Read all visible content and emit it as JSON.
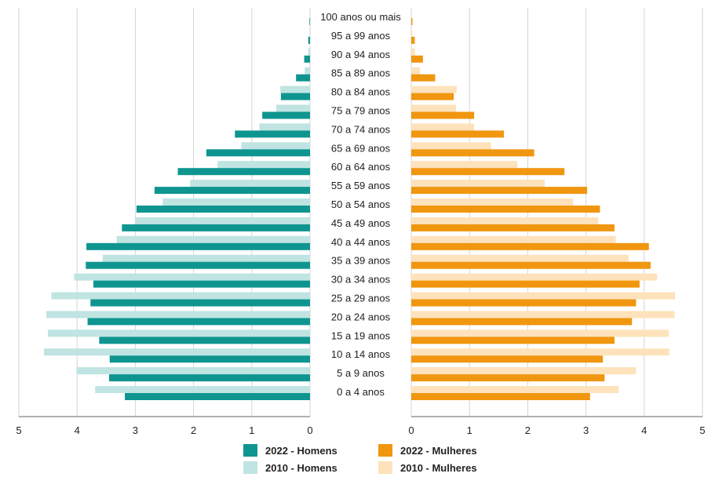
{
  "chart_data": {
    "type": "bar",
    "orientation": "horizontal",
    "categories": [
      "0 a 4 anos",
      "5 a 9 anos",
      "10 a 14 anos",
      "15 a 19 anos",
      "20 a 24 anos",
      "25 a 29 anos",
      "30 a 34 anos",
      "35 a 39 anos",
      "40 a 44 anos",
      "45 a 49 anos",
      "50 a 54 anos",
      "55 a 59 anos",
      "60 a 64 anos",
      "65 a 69 anos",
      "70 a 74 anos",
      "75 a 79 anos",
      "80 a 84 anos",
      "85 a 89 anos",
      "90 a 94 anos",
      "95 a 99 anos",
      "100 anos ou mais"
    ],
    "series": [
      {
        "name": "2022 - Homens",
        "side": "left",
        "color": "#0f9590",
        "values": [
          3.18,
          3.45,
          3.44,
          3.62,
          3.82,
          3.77,
          3.72,
          3.85,
          3.84,
          3.23,
          2.98,
          2.67,
          2.27,
          1.78,
          1.29,
          0.82,
          0.5,
          0.24,
          0.1,
          0.03,
          0.01
        ]
      },
      {
        "name": "2010 - Homens",
        "side": "left",
        "color": "#bfe4e2",
        "values": [
          3.69,
          4.01,
          4.57,
          4.5,
          4.53,
          4.44,
          4.05,
          3.56,
          3.32,
          3.0,
          2.53,
          2.06,
          1.59,
          1.18,
          0.87,
          0.58,
          0.51,
          0.09,
          0.03,
          0.01,
          0.0
        ]
      },
      {
        "name": "2022 - Mulheres",
        "side": "right",
        "color": "#f0960f",
        "values": [
          3.07,
          3.32,
          3.29,
          3.49,
          3.79,
          3.86,
          3.92,
          4.11,
          4.08,
          3.49,
          3.24,
          3.02,
          2.63,
          2.11,
          1.59,
          1.08,
          0.73,
          0.41,
          0.2,
          0.06,
          0.02
        ]
      },
      {
        "name": "2010 - Mulheres",
        "side": "right",
        "color": "#fde2bb",
        "values": [
          3.56,
          3.86,
          4.43,
          4.42,
          4.52,
          4.53,
          4.22,
          3.73,
          3.51,
          3.21,
          2.78,
          2.29,
          1.82,
          1.37,
          1.08,
          0.77,
          0.78,
          0.15,
          0.06,
          0.02,
          0.01
        ]
      }
    ],
    "x_left": {
      "ticks": [
        "5",
        "4",
        "3",
        "2",
        "1",
        "0"
      ],
      "range": [
        5,
        0
      ]
    },
    "x_right": {
      "ticks": [
        "0",
        "1",
        "2",
        "3",
        "4",
        "5"
      ],
      "range": [
        0,
        5
      ]
    },
    "grid": true,
    "legend_placement": "bottom-center",
    "title": "",
    "xlabel": "",
    "ylabel": ""
  },
  "legend": {
    "item_2022_homens": "2022 - Homens",
    "item_2010_homens": "2010 - Homens",
    "item_2022_mulheres": "2022 - Mulheres",
    "item_2010_mulheres": "2010 - Mulheres",
    "color_2022_homens": "#0f9590",
    "color_2010_homens": "#bfe4e2",
    "color_2022_mulheres": "#f0960f",
    "color_2010_mulheres": "#fde2bb"
  }
}
